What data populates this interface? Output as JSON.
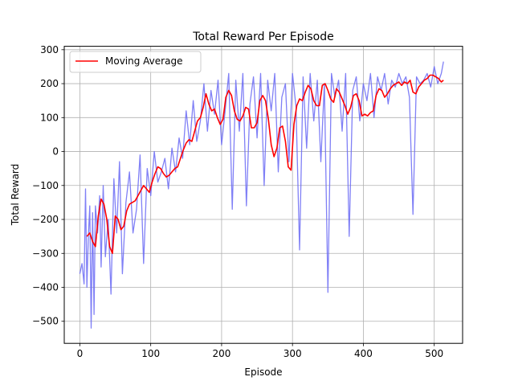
{
  "chart_data": {
    "type": "line",
    "title": "Total Reward Per Episode",
    "xlabel": "Episode",
    "ylabel": "Total Reward",
    "xlim": [
      -22,
      540
    ],
    "ylim": [
      -565,
      310
    ],
    "xticks": [
      0,
      100,
      200,
      300,
      400,
      500
    ],
    "yticks": [
      -500,
      -400,
      -300,
      -200,
      -100,
      0,
      100,
      200,
      300
    ],
    "grid": true,
    "legend": {
      "placement": "top-left",
      "entries": [
        "Moving Average"
      ]
    },
    "series": [
      {
        "name": "",
        "color": "#6a6af4",
        "opacity": 0.85,
        "x": [
          0,
          3,
          6,
          8,
          10,
          12,
          14,
          16,
          18,
          20,
          22,
          25,
          28,
          30,
          33,
          36,
          40,
          44,
          48,
          52,
          56,
          60,
          65,
          70,
          75,
          80,
          85,
          90,
          95,
          100,
          105,
          110,
          115,
          120,
          125,
          130,
          135,
          140,
          145,
          150,
          155,
          160,
          165,
          170,
          175,
          180,
          185,
          190,
          195,
          200,
          205,
          210,
          215,
          220,
          225,
          230,
          235,
          240,
          245,
          250,
          255,
          260,
          265,
          270,
          275,
          280,
          285,
          290,
          295,
          300,
          305,
          310,
          315,
          320,
          325,
          330,
          335,
          340,
          345,
          350,
          355,
          360,
          365,
          370,
          375,
          380,
          385,
          390,
          395,
          400,
          405,
          410,
          415,
          420,
          425,
          430,
          435,
          440,
          445,
          450,
          455,
          460,
          465,
          470,
          475,
          480,
          485,
          490,
          495,
          500,
          505,
          510,
          513
        ],
        "y": [
          -360,
          -330,
          -390,
          -110,
          -400,
          -250,
          -160,
          -520,
          -180,
          -480,
          -160,
          -240,
          -130,
          -340,
          -100,
          -310,
          -200,
          -420,
          -80,
          -240,
          -30,
          -360,
          -150,
          -60,
          -240,
          -170,
          -10,
          -330,
          -50,
          -130,
          0,
          -90,
          -60,
          -20,
          -110,
          10,
          -60,
          40,
          -20,
          120,
          20,
          150,
          30,
          90,
          200,
          60,
          180,
          110,
          210,
          20,
          120,
          230,
          -170,
          210,
          60,
          230,
          -160,
          140,
          220,
          40,
          230,
          -100,
          210,
          120,
          230,
          -60,
          160,
          200,
          -30,
          230,
          130,
          -290,
          220,
          10,
          230,
          90,
          210,
          -30,
          200,
          -415,
          230,
          160,
          210,
          60,
          230,
          -250,
          180,
          220,
          90,
          200,
          150,
          230,
          100,
          220,
          180,
          230,
          140,
          210,
          190,
          230,
          200,
          220,
          160,
          -185,
          220,
          200,
          210,
          230,
          190,
          250,
          200,
          230,
          265
        ]
      },
      {
        "name": "Moving Average",
        "color": "#ff0000",
        "x": [
          10,
          14,
          18,
          22,
          26,
          30,
          34,
          38,
          42,
          46,
          50,
          54,
          58,
          62,
          66,
          70,
          74,
          78,
          82,
          86,
          90,
          94,
          98,
          102,
          106,
          110,
          114,
          118,
          122,
          126,
          130,
          134,
          138,
          142,
          146,
          150,
          154,
          158,
          162,
          166,
          170,
          174,
          178,
          182,
          186,
          190,
          194,
          198,
          202,
          206,
          210,
          214,
          218,
          222,
          226,
          230,
          234,
          238,
          242,
          246,
          250,
          254,
          258,
          262,
          266,
          270,
          274,
          278,
          282,
          286,
          290,
          294,
          298,
          302,
          306,
          310,
          314,
          318,
          322,
          326,
          330,
          334,
          338,
          342,
          346,
          350,
          354,
          358,
          362,
          366,
          370,
          374,
          378,
          382,
          386,
          390,
          394,
          398,
          402,
          406,
          410,
          414,
          418,
          422,
          426,
          430,
          434,
          438,
          442,
          446,
          450,
          454,
          458,
          462,
          466,
          470,
          474,
          478,
          482,
          486,
          490,
          494,
          498,
          502,
          506,
          510,
          513
        ],
        "y": [
          -250,
          -240,
          -265,
          -280,
          -190,
          -140,
          -155,
          -200,
          -280,
          -300,
          -190,
          -200,
          -230,
          -220,
          -175,
          -155,
          -150,
          -145,
          -130,
          -115,
          -100,
          -110,
          -120,
          -90,
          -65,
          -45,
          -50,
          -65,
          -75,
          -70,
          -60,
          -50,
          -45,
          -20,
          5,
          25,
          35,
          30,
          60,
          90,
          100,
          130,
          170,
          140,
          120,
          125,
          100,
          80,
          95,
          160,
          180,
          165,
          120,
          95,
          90,
          105,
          130,
          125,
          70,
          70,
          85,
          150,
          165,
          150,
          95,
          20,
          -15,
          10,
          70,
          75,
          30,
          -45,
          -55,
          80,
          135,
          155,
          150,
          175,
          195,
          185,
          150,
          135,
          135,
          195,
          200,
          180,
          155,
          145,
          185,
          175,
          155,
          135,
          110,
          130,
          165,
          170,
          150,
          105,
          110,
          105,
          115,
          120,
          165,
          185,
          180,
          160,
          170,
          185,
          195,
          200,
          205,
          195,
          205,
          200,
          210,
          175,
          170,
          190,
          200,
          210,
          215,
          225,
          225,
          220,
          215,
          205,
          210
        ]
      }
    ]
  }
}
